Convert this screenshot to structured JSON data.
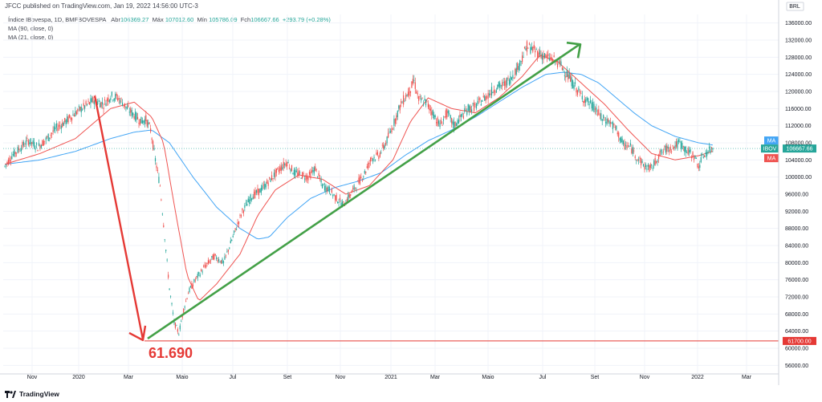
{
  "header": {
    "text": "JFCC published on TradingView.com, Jan 19, 2022 14:56:00 UTC-3"
  },
  "legend": {
    "symbol": "Índice IBovespa, 1D, BMFBOVESPA",
    "open_label": "Abr",
    "open": "106369.27",
    "high_label": "Máx",
    "high": "107012.60",
    "low_label": "Mín",
    "low": "105786.09",
    "close_label": "Fch",
    "close": "106667.66",
    "change": "+293.79 (+0.28%)",
    "ma1": "MA (90, close, 0)",
    "ma2": "MA (21, close, 0)"
  },
  "footer": {
    "brand": "TradingView"
  },
  "colors": {
    "up": "#26a69a",
    "down": "#ef5350",
    "ma90": "#42a5f5",
    "ma21": "#ef5350",
    "arrow_down": "#e53935",
    "arrow_up": "#43a047"
  },
  "chart_data": {
    "type": "candlestick",
    "currency": "BRL",
    "y_ticks": [
      "136000.00",
      "132000.00",
      "128000.00",
      "124000.00",
      "120000.00",
      "116000.00",
      "112000.00",
      "108000.00",
      "104000.00",
      "100000.00",
      "96000.00",
      "92000.00",
      "88000.00",
      "84000.00",
      "80000.00",
      "76000.00",
      "72000.00",
      "68000.00",
      "64000.00",
      "60000.00",
      "56000.00"
    ],
    "ylim": [
      54000,
      138000
    ],
    "x_ticks": [
      "Nov",
      "2020",
      "Mar",
      "Maio",
      "Jul",
      "Set",
      "Nov",
      "2021",
      "Mar",
      "Maio",
      "Jul",
      "Set",
      "Nov",
      "2022",
      "Mar"
    ],
    "price_path": [
      [
        0,
        102500
      ],
      [
        6,
        105000
      ],
      [
        12,
        106500
      ],
      [
        20,
        108500
      ],
      [
        28,
        107000
      ],
      [
        36,
        109000
      ],
      [
        44,
        111500
      ],
      [
        52,
        113000
      ],
      [
        60,
        115000
      ],
      [
        68,
        116500
      ],
      [
        76,
        118000
      ],
      [
        84,
        117000
      ],
      [
        90,
        119000
      ],
      [
        96,
        118500
      ],
      [
        100,
        117500
      ],
      [
        104,
        116000
      ],
      [
        110,
        114500
      ],
      [
        116,
        113000
      ],
      [
        120,
        113500
      ],
      [
        124,
        111000
      ],
      [
        128,
        104000
      ],
      [
        132,
        98000
      ],
      [
        136,
        86000
      ],
      [
        140,
        74000
      ],
      [
        144,
        66000
      ],
      [
        148,
        63500
      ],
      [
        152,
        69000
      ],
      [
        156,
        73000
      ],
      [
        162,
        76000
      ],
      [
        170,
        79000
      ],
      [
        178,
        81500
      ],
      [
        186,
        80000
      ],
      [
        194,
        86000
      ],
      [
        202,
        92000
      ],
      [
        210,
        95500
      ],
      [
        218,
        97000
      ],
      [
        226,
        99500
      ],
      [
        234,
        102000
      ],
      [
        240,
        103500
      ],
      [
        246,
        101000
      ],
      [
        252,
        100500
      ],
      [
        258,
        100000
      ],
      [
        264,
        102000
      ],
      [
        270,
        98000
      ],
      [
        276,
        97000
      ],
      [
        282,
        95000
      ],
      [
        288,
        93500
      ],
      [
        294,
        96000
      ],
      [
        300,
        98500
      ],
      [
        306,
        101000
      ],
      [
        312,
        104500
      ],
      [
        318,
        105000
      ],
      [
        324,
        108000
      ],
      [
        330,
        112000
      ],
      [
        336,
        116500
      ],
      [
        340,
        118500
      ],
      [
        344,
        120000
      ],
      [
        348,
        122500
      ],
      [
        352,
        118000
      ],
      [
        358,
        117500
      ],
      [
        364,
        115000
      ],
      [
        370,
        112000
      ],
      [
        376,
        115000
      ],
      [
        382,
        112000
      ],
      [
        388,
        114000
      ],
      [
        394,
        116000
      ],
      [
        400,
        116500
      ],
      [
        406,
        118000
      ],
      [
        412,
        119500
      ],
      [
        418,
        121000
      ],
      [
        424,
        121500
      ],
      [
        430,
        123000
      ],
      [
        436,
        125500
      ],
      [
        440,
        128000
      ],
      [
        444,
        130500
      ],
      [
        448,
        130000
      ],
      [
        454,
        129000
      ],
      [
        460,
        128000
      ],
      [
        466,
        127500
      ],
      [
        472,
        126500
      ],
      [
        478,
        124000
      ],
      [
        484,
        121500
      ],
      [
        490,
        119000
      ],
      [
        496,
        117500
      ],
      [
        502,
        116000
      ],
      [
        508,
        113500
      ],
      [
        514,
        113000
      ],
      [
        520,
        111000
      ],
      [
        526,
        107500
      ],
      [
        532,
        107000
      ],
      [
        538,
        104500
      ],
      [
        544,
        102500
      ],
      [
        550,
        102000
      ],
      [
        556,
        105000
      ],
      [
        562,
        106500
      ],
      [
        568,
        107000
      ],
      [
        574,
        108000
      ],
      [
        580,
        106000
      ],
      [
        586,
        105000
      ],
      [
        590,
        102500
      ],
      [
        594,
        105000
      ],
      [
        598,
        106000
      ],
      [
        602,
        106700
      ]
    ],
    "ma90_path": [
      [
        0,
        103000
      ],
      [
        30,
        104000
      ],
      [
        60,
        106000
      ],
      [
        90,
        109000
      ],
      [
        110,
        110500
      ],
      [
        125,
        111000
      ],
      [
        140,
        108000
      ],
      [
        160,
        100000
      ],
      [
        180,
        93000
      ],
      [
        200,
        88000
      ],
      [
        215,
        85500
      ],
      [
        225,
        86000
      ],
      [
        240,
        90500
      ],
      [
        260,
        95000
      ],
      [
        280,
        97500
      ],
      [
        300,
        99000
      ],
      [
        320,
        101000
      ],
      [
        340,
        105000
      ],
      [
        360,
        108500
      ],
      [
        380,
        111000
      ],
      [
        400,
        114000
      ],
      [
        420,
        117500
      ],
      [
        440,
        121000
      ],
      [
        460,
        124000
      ],
      [
        475,
        124500
      ],
      [
        490,
        124000
      ],
      [
        505,
        122000
      ],
      [
        520,
        118500
      ],
      [
        535,
        115000
      ],
      [
        550,
        112000
      ],
      [
        570,
        109500
      ],
      [
        590,
        108000
      ],
      [
        602,
        107500
      ]
    ],
    "ma21_path": [
      [
        0,
        103000
      ],
      [
        30,
        105500
      ],
      [
        60,
        109000
      ],
      [
        90,
        116000
      ],
      [
        110,
        117500
      ],
      [
        125,
        114000
      ],
      [
        135,
        108000
      ],
      [
        145,
        92000
      ],
      [
        155,
        77000
      ],
      [
        165,
        71000
      ],
      [
        180,
        75000
      ],
      [
        200,
        82000
      ],
      [
        215,
        91000
      ],
      [
        230,
        97000
      ],
      [
        250,
        100500
      ],
      [
        270,
        99500
      ],
      [
        290,
        96000
      ],
      [
        310,
        98000
      ],
      [
        330,
        104000
      ],
      [
        345,
        113000
      ],
      [
        360,
        118500
      ],
      [
        380,
        116000
      ],
      [
        400,
        115000
      ],
      [
        420,
        118500
      ],
      [
        440,
        123500
      ],
      [
        455,
        128500
      ],
      [
        470,
        127000
      ],
      [
        490,
        122000
      ],
      [
        510,
        117000
      ],
      [
        530,
        111000
      ],
      [
        550,
        105500
      ],
      [
        570,
        104000
      ],
      [
        590,
        105000
      ],
      [
        602,
        106000
      ]
    ],
    "annotations": {
      "low_level_label": "61.690",
      "support_line_tag": "61700.00",
      "ma_tag_top": "MA",
      "last_price_symbol": "IBOV",
      "last_price": "106667.66",
      "ma_tag_bottom": "MA"
    }
  }
}
